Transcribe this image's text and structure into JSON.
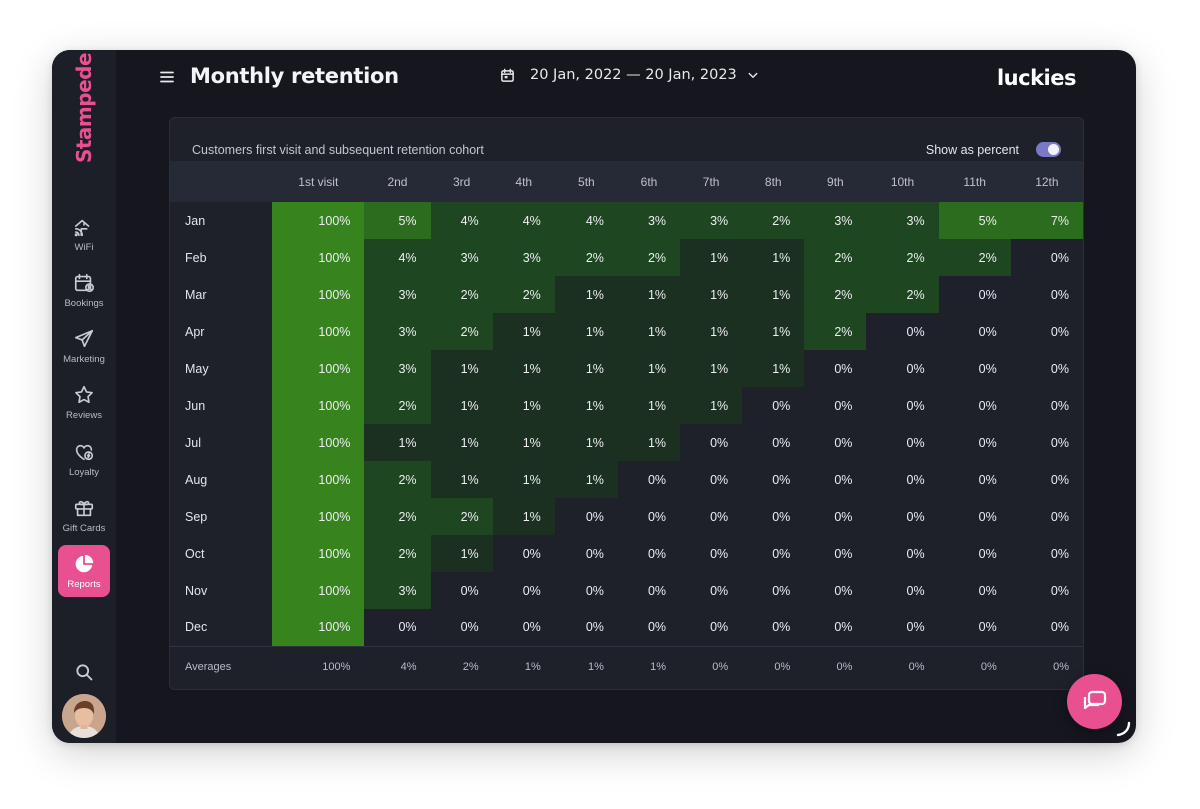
{
  "app": {
    "brand": "Stampede",
    "venue": "luckies"
  },
  "header": {
    "title": "Monthly retention",
    "date_range": "20 Jan, 2022 — 20 Jan, 2023"
  },
  "sidebar": {
    "items": [
      {
        "label": "WiFi",
        "icon": "wifi-home-icon"
      },
      {
        "label": "Bookings",
        "icon": "calendar-user-icon"
      },
      {
        "label": "Marketing",
        "icon": "paper-plane-icon"
      },
      {
        "label": "Reviews",
        "icon": "star-icon"
      },
      {
        "label": "Loyalty",
        "icon": "heart-badge-icon"
      },
      {
        "label": "Gift Cards",
        "icon": "gift-icon"
      },
      {
        "label": "Reports",
        "icon": "pie-chart-icon",
        "active": true
      }
    ]
  },
  "card": {
    "title": "Customers first visit and subsequent retention cohort",
    "toggle_label": "Show as percent",
    "toggle_on": true
  },
  "cohort": {
    "columns": [
      "1st visit",
      "2nd",
      "3rd",
      "4th",
      "5th",
      "6th",
      "7th",
      "8th",
      "9th",
      "10th",
      "11th",
      "12th"
    ],
    "rows": [
      {
        "month": "Jan",
        "values": [
          "100%",
          "5%",
          "4%",
          "4%",
          "4%",
          "3%",
          "3%",
          "2%",
          "3%",
          "3%",
          "5%",
          "7%"
        ]
      },
      {
        "month": "Feb",
        "values": [
          "100%",
          "4%",
          "3%",
          "3%",
          "2%",
          "2%",
          "1%",
          "1%",
          "2%",
          "2%",
          "2%",
          "0%"
        ]
      },
      {
        "month": "Mar",
        "values": [
          "100%",
          "3%",
          "2%",
          "2%",
          "1%",
          "1%",
          "1%",
          "1%",
          "2%",
          "2%",
          "0%",
          "0%"
        ]
      },
      {
        "month": "Apr",
        "values": [
          "100%",
          "3%",
          "2%",
          "1%",
          "1%",
          "1%",
          "1%",
          "1%",
          "2%",
          "0%",
          "0%",
          "0%"
        ]
      },
      {
        "month": "May",
        "values": [
          "100%",
          "3%",
          "1%",
          "1%",
          "1%",
          "1%",
          "1%",
          "1%",
          "0%",
          "0%",
          "0%",
          "0%"
        ]
      },
      {
        "month": "Jun",
        "values": [
          "100%",
          "2%",
          "1%",
          "1%",
          "1%",
          "1%",
          "1%",
          "0%",
          "0%",
          "0%",
          "0%",
          "0%"
        ]
      },
      {
        "month": "Jul",
        "values": [
          "100%",
          "1%",
          "1%",
          "1%",
          "1%",
          "1%",
          "0%",
          "0%",
          "0%",
          "0%",
          "0%",
          "0%"
        ]
      },
      {
        "month": "Aug",
        "values": [
          "100%",
          "2%",
          "1%",
          "1%",
          "1%",
          "0%",
          "0%",
          "0%",
          "0%",
          "0%",
          "0%",
          "0%"
        ]
      },
      {
        "month": "Sep",
        "values": [
          "100%",
          "2%",
          "2%",
          "1%",
          "0%",
          "0%",
          "0%",
          "0%",
          "0%",
          "0%",
          "0%",
          "0%"
        ]
      },
      {
        "month": "Oct",
        "values": [
          "100%",
          "2%",
          "1%",
          "0%",
          "0%",
          "0%",
          "0%",
          "0%",
          "0%",
          "0%",
          "0%",
          "0%"
        ]
      },
      {
        "month": "Nov",
        "values": [
          "100%",
          "3%",
          "0%",
          "0%",
          "0%",
          "0%",
          "0%",
          "0%",
          "0%",
          "0%",
          "0%",
          "0%"
        ]
      },
      {
        "month": "Dec",
        "values": [
          "100%",
          "0%",
          "0%",
          "0%",
          "0%",
          "0%",
          "0%",
          "0%",
          "0%",
          "0%",
          "0%",
          "0%"
        ]
      }
    ],
    "averages_label": "Averages",
    "averages": [
      "100%",
      "4%",
      "2%",
      "1%",
      "1%",
      "1%",
      "0%",
      "0%",
      "0%",
      "0%",
      "0%",
      "0%"
    ]
  },
  "colors": {
    "accent": "#e9508f",
    "heat_full": "#37841f",
    "heat_high": "#2c6c1f",
    "heat_mid": "#1e4620",
    "heat_low": "#1b3020",
    "cell_empty": "#1e202a"
  }
}
